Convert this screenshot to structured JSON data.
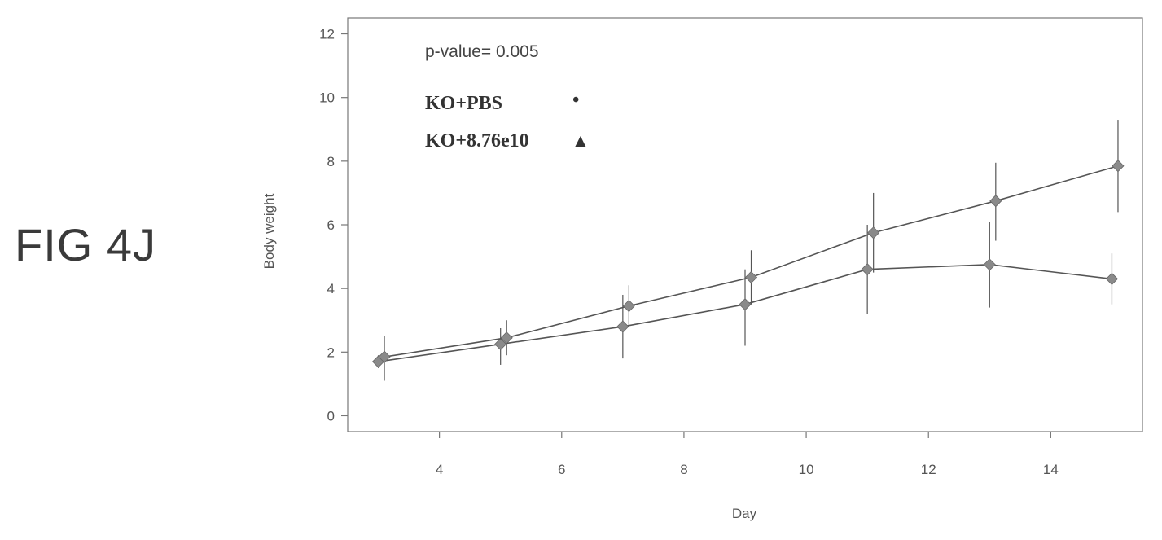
{
  "figure_label": "FIG 4J",
  "chart_data": {
    "type": "line",
    "xlabel": "Day",
    "ylabel": "Body weight",
    "xlim": [
      2.5,
      15.5
    ],
    "ylim": [
      -0.5,
      12.5
    ],
    "xticks": [
      4,
      6,
      8,
      10,
      12,
      14
    ],
    "yticks": [
      0,
      2,
      4,
      6,
      8,
      10,
      12
    ],
    "annotation": "p-value= 0.005",
    "legend_placement": "top-left",
    "series": [
      {
        "name": "KO+PBS",
        "legend_symbol": "•",
        "marker": "diamond",
        "x": [
          3,
          5,
          7,
          9,
          11,
          13,
          15
        ],
        "y": [
          1.7,
          2.25,
          2.8,
          3.5,
          4.6,
          4.75,
          4.3
        ],
        "err_low": [
          1.5,
          1.6,
          1.8,
          2.2,
          3.2,
          3.4,
          3.5
        ],
        "err_high": [
          1.9,
          2.75,
          3.8,
          4.6,
          6.0,
          6.1,
          5.1
        ]
      },
      {
        "name": "KO+8.76e10",
        "legend_symbol": "▲",
        "marker": "diamond",
        "x": [
          3.1,
          5.1,
          7.1,
          9.1,
          11.1,
          13.1,
          15.1
        ],
        "y": [
          1.85,
          2.45,
          3.45,
          4.35,
          5.75,
          6.75,
          7.85
        ],
        "err_low": [
          1.1,
          1.9,
          2.8,
          3.5,
          4.5,
          5.5,
          6.4
        ],
        "err_high": [
          2.5,
          3.0,
          4.1,
          5.2,
          7.0,
          7.95,
          9.3
        ]
      }
    ],
    "colors": {
      "line": "#555555",
      "marker": "#8a8a8a",
      "axis": "#777777"
    }
  }
}
